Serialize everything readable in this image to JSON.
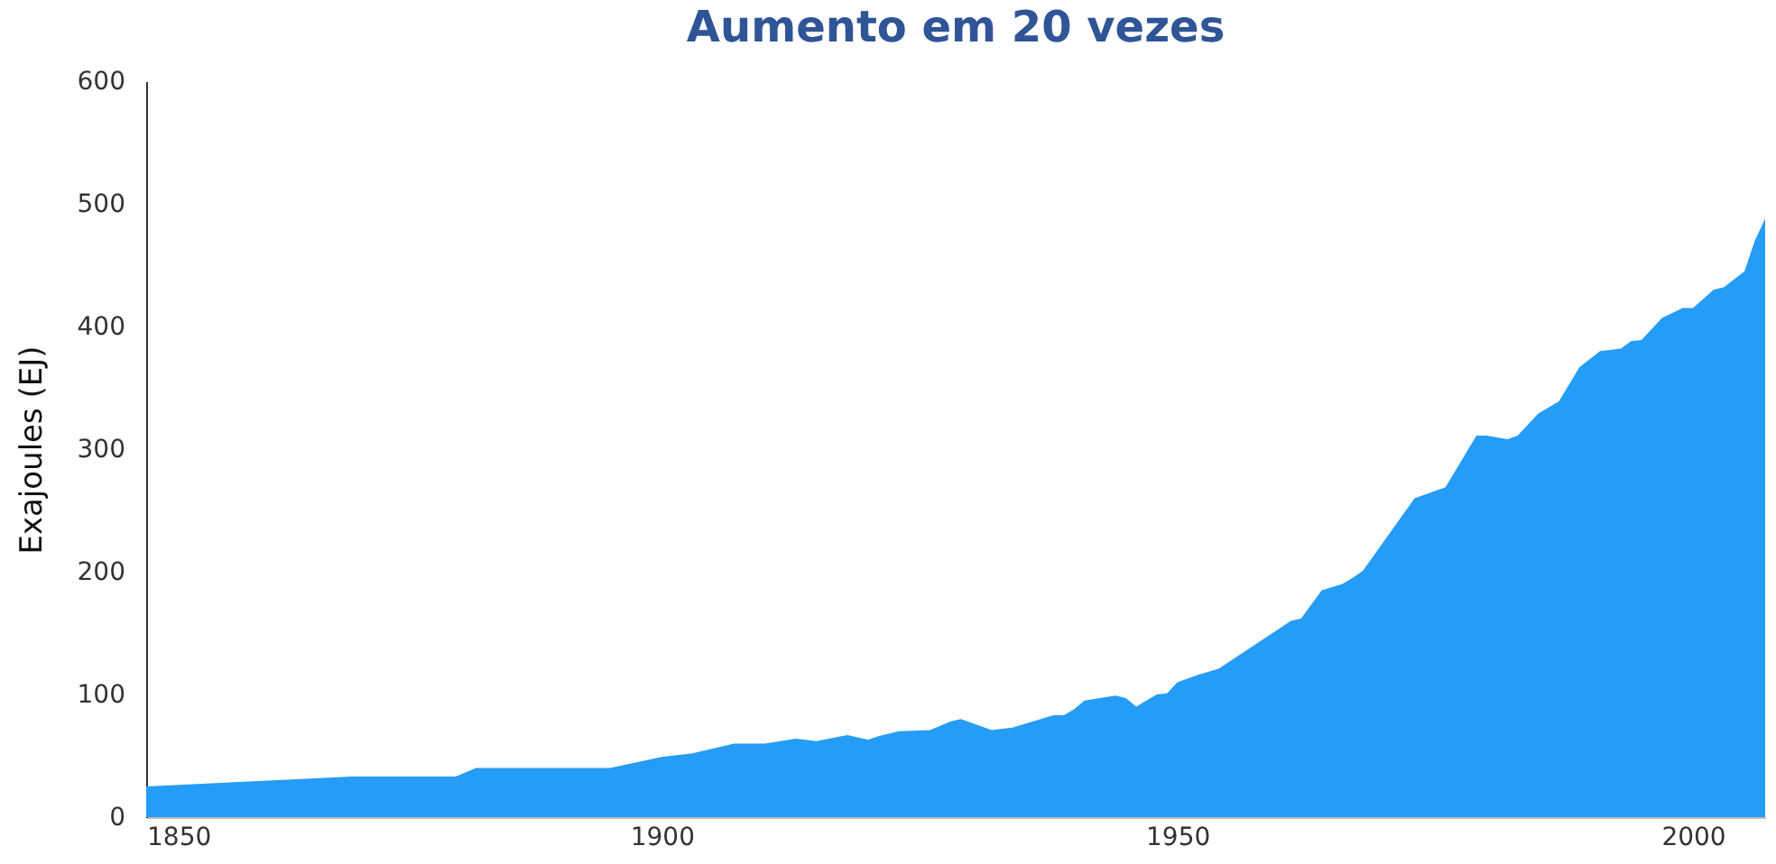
{
  "chart_data": {
    "type": "area",
    "title": "Aumento em 20 vezes",
    "ylabel": "Exajoules (EJ)",
    "x": [
      1850,
      1860,
      1870,
      1880,
      1882,
      1895,
      1900,
      1903,
      1907,
      1910,
      1913,
      1915,
      1918,
      1920,
      1921,
      1923,
      1926,
      1928,
      1929,
      1932,
      1934,
      1938,
      1939,
      1940,
      1941,
      1944,
      1945,
      1946,
      1948,
      1949,
      1950,
      1952,
      1954,
      1961,
      1962,
      1964,
      1966,
      1967,
      1968,
      1973,
      1976,
      1979,
      1980,
      1982,
      1983,
      1985,
      1987,
      1989,
      1991,
      1993,
      1994,
      1995,
      1997,
      1999,
      2000,
      2002,
      2003,
      2005,
      2006,
      2007
    ],
    "series": [
      {
        "color": "#259cf5",
        "values": [
          25,
          29,
          33,
          33,
          40,
          40,
          49,
          52,
          60,
          60,
          64,
          62,
          67,
          63,
          66,
          70,
          71,
          78,
          80,
          71,
          73,
          83,
          83,
          88,
          95,
          99,
          97,
          90,
          100,
          101,
          110,
          116,
          121,
          160,
          162,
          185,
          190,
          195,
          201,
          260,
          269,
          311,
          311,
          308,
          311,
          329,
          339,
          367,
          380,
          382,
          388,
          389,
          407,
          415,
          415,
          430,
          432,
          445,
          470,
          488
        ]
      }
    ],
    "xlim": [
      1850,
      2007
    ],
    "xticks": [
      1850,
      1900,
      1950,
      2000
    ],
    "ylim": [
      0,
      600
    ],
    "yticks": [
      0,
      100,
      200,
      300,
      400,
      500,
      600
    ],
    "grid": false
  }
}
